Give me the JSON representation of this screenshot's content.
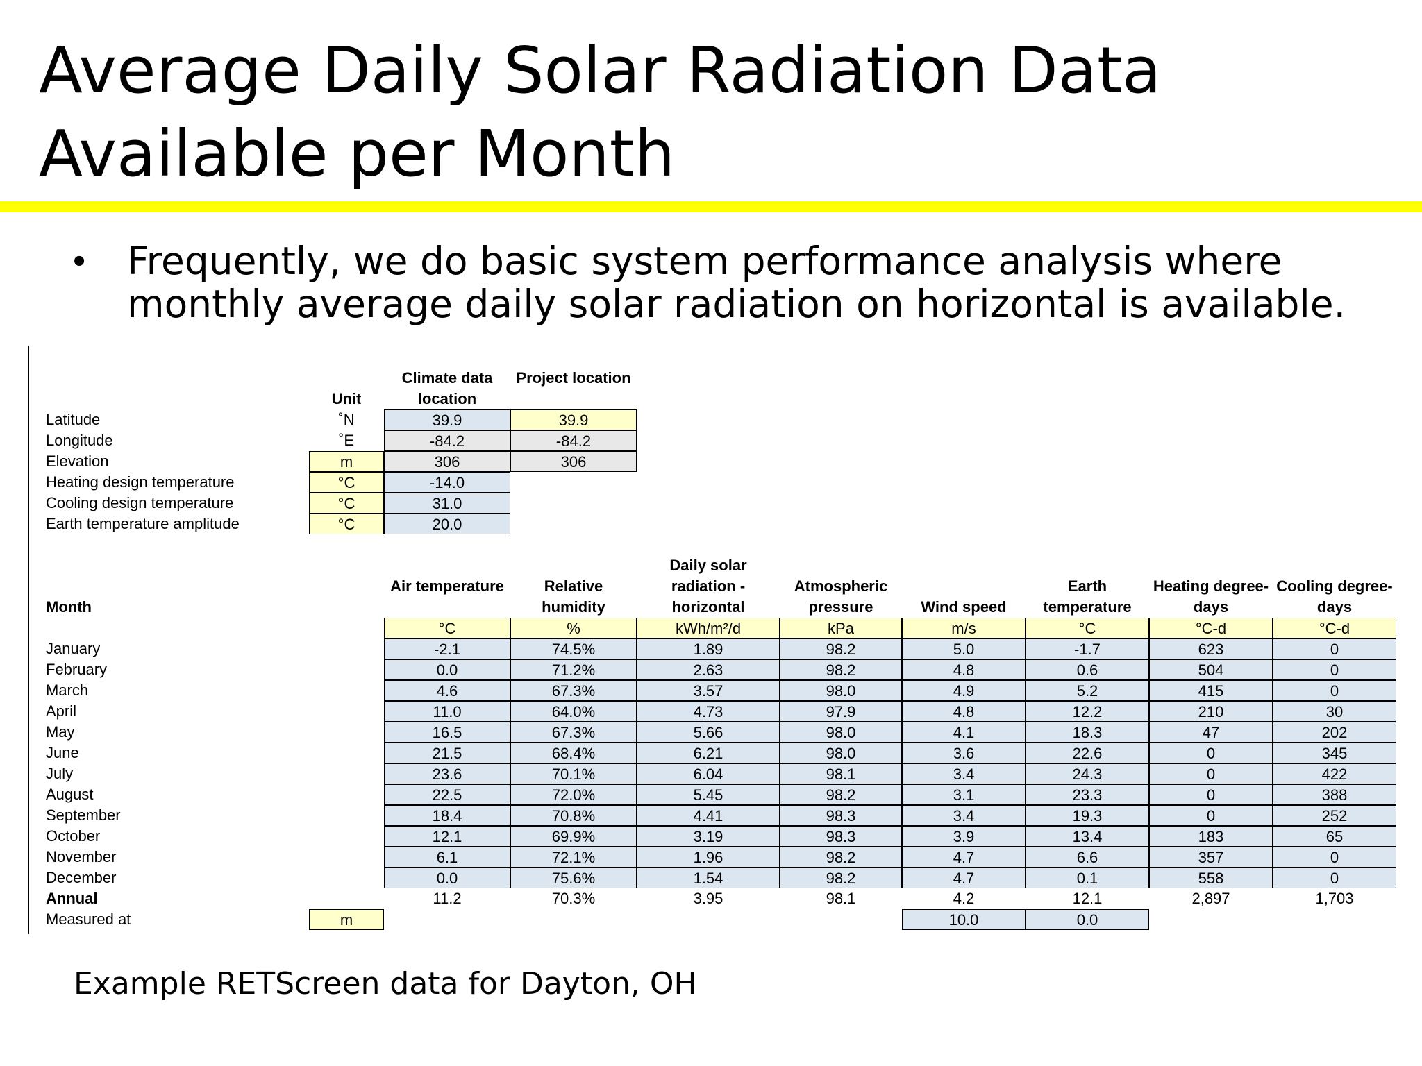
{
  "slide": {
    "title": "Average Daily Solar Radiation Data Available per Month",
    "bullet": "Frequently, we do basic system performance analysis where monthly average daily solar radiation on horizontal is available.",
    "caption": "Example RETScreen data for Dayton, OH",
    "accent_color": "#ffff00"
  },
  "site_table": {
    "headers": [
      "Unit",
      "Climate data location",
      "Project location"
    ],
    "rows": [
      {
        "label": "Latitude",
        "unit": "˚N",
        "climate": "39.9",
        "project": "39.9"
      },
      {
        "label": "Longitude",
        "unit": "˚E",
        "climate": "-84.2",
        "project": "-84.2"
      },
      {
        "label": "Elevation",
        "unit": "m",
        "climate": "306",
        "project": "306"
      },
      {
        "label": "Heating design temperature",
        "unit": "°C",
        "climate": "-14.0",
        "project": ""
      },
      {
        "label": "Cooling design temperature",
        "unit": "°C",
        "climate": "31.0",
        "project": ""
      },
      {
        "label": "Earth temperature amplitude",
        "unit": "°C",
        "climate": "20.0",
        "project": ""
      }
    ]
  },
  "monthly_table": {
    "month_header": "Month",
    "columns": [
      {
        "name": "Air temperature",
        "unit": "°C"
      },
      {
        "name": "Relative humidity",
        "unit": "%"
      },
      {
        "name": "Daily solar radiation - horizontal",
        "unit": "kWh/m²/d"
      },
      {
        "name": "Atmospheric pressure",
        "unit": "kPa"
      },
      {
        "name": "Wind speed",
        "unit": "m/s"
      },
      {
        "name": "Earth temperature",
        "unit": "°C"
      },
      {
        "name": "Heating degree-days",
        "unit": "°C-d"
      },
      {
        "name": "Cooling degree-days",
        "unit": "°C-d"
      }
    ],
    "rows": [
      {
        "month": "January",
        "values": [
          "-2.1",
          "74.5%",
          "1.89",
          "98.2",
          "5.0",
          "-1.7",
          "623",
          "0"
        ]
      },
      {
        "month": "February",
        "values": [
          "0.0",
          "71.2%",
          "2.63",
          "98.2",
          "4.8",
          "0.6",
          "504",
          "0"
        ]
      },
      {
        "month": "March",
        "values": [
          "4.6",
          "67.3%",
          "3.57",
          "98.0",
          "4.9",
          "5.2",
          "415",
          "0"
        ]
      },
      {
        "month": "April",
        "values": [
          "11.0",
          "64.0%",
          "4.73",
          "97.9",
          "4.8",
          "12.2",
          "210",
          "30"
        ]
      },
      {
        "month": "May",
        "values": [
          "16.5",
          "67.3%",
          "5.66",
          "98.0",
          "4.1",
          "18.3",
          "47",
          "202"
        ]
      },
      {
        "month": "June",
        "values": [
          "21.5",
          "68.4%",
          "6.21",
          "98.0",
          "3.6",
          "22.6",
          "0",
          "345"
        ]
      },
      {
        "month": "July",
        "values": [
          "23.6",
          "70.1%",
          "6.04",
          "98.1",
          "3.4",
          "24.3",
          "0",
          "422"
        ]
      },
      {
        "month": "August",
        "values": [
          "22.5",
          "72.0%",
          "5.45",
          "98.2",
          "3.1",
          "23.3",
          "0",
          "388"
        ]
      },
      {
        "month": "September",
        "values": [
          "18.4",
          "70.8%",
          "4.41",
          "98.3",
          "3.4",
          "19.3",
          "0",
          "252"
        ]
      },
      {
        "month": "October",
        "values": [
          "12.1",
          "69.9%",
          "3.19",
          "98.3",
          "3.9",
          "13.4",
          "183",
          "65"
        ]
      },
      {
        "month": "November",
        "values": [
          "6.1",
          "72.1%",
          "1.96",
          "98.2",
          "4.7",
          "6.6",
          "357",
          "0"
        ]
      },
      {
        "month": "December",
        "values": [
          "0.0",
          "75.6%",
          "1.54",
          "98.2",
          "4.7",
          "0.1",
          "558",
          "0"
        ]
      }
    ],
    "annual": {
      "label": "Annual",
      "values": [
        "11.2",
        "70.3%",
        "3.95",
        "98.1",
        "4.2",
        "12.1",
        "2,897",
        "1,703"
      ]
    },
    "measured_at": {
      "label": "Measured at",
      "unit": "m",
      "wind": "10.0",
      "earth": "0.0"
    }
  }
}
